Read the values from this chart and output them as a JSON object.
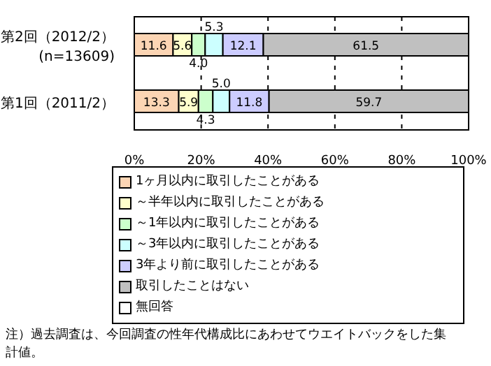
{
  "chart_data": {
    "type": "bar",
    "orientation": "horizontal",
    "stacked": true,
    "categories": [
      "第2回（2012/2）\n(n=13609)",
      "第1回（2011/2）"
    ],
    "series": [
      {
        "name": "1ヶ月以内に取引したことがある",
        "color": "#fcd5b4",
        "values": [
          11.6,
          13.3
        ],
        "value_labels": [
          "11.6",
          "13.3"
        ]
      },
      {
        "name": "～半年以内に取引したことがある",
        "color": "#ffffcc",
        "values": [
          5.6,
          5.9
        ],
        "value_labels": [
          "5.6",
          "5.9"
        ]
      },
      {
        "name": "～1年以内に取引したことがある",
        "color": "#ccffcc",
        "values": [
          4.0,
          4.3
        ],
        "value_labels": [
          "4.0",
          "4.3"
        ]
      },
      {
        "name": "～3年以内に取引したことがある",
        "color": "#ccffff",
        "values": [
          5.3,
          5.0
        ],
        "value_labels": [
          "5.3",
          "5.0"
        ]
      },
      {
        "name": "3年より前に取引したことがある",
        "color": "#ccccff",
        "values": [
          12.1,
          11.8
        ],
        "value_labels": [
          "12.1",
          "11.8"
        ]
      },
      {
        "name": "取引したことはない",
        "color": "#c0c0c0",
        "values": [
          61.5,
          59.7
        ],
        "value_labels": [
          "61.5",
          "59.7"
        ]
      },
      {
        "name": "無回答",
        "color": "#ffffff",
        "values": [
          0,
          0
        ],
        "value_labels": [
          null,
          null
        ]
      }
    ],
    "xlim": [
      0,
      100
    ],
    "xticks": [
      {
        "value": 0,
        "label": "0%"
      },
      {
        "value": 20,
        "label": "20%"
      },
      {
        "value": 40,
        "label": "40%"
      },
      {
        "value": 60,
        "label": "60%"
      },
      {
        "value": 80,
        "label": "80%"
      },
      {
        "value": 100,
        "label": "100%"
      }
    ],
    "grid": "x",
    "legend": "bottom",
    "annotations": [
      "注）過去調査は、今回調査の性年代構成比にあわせてウエイトバックをした集計値。"
    ]
  }
}
